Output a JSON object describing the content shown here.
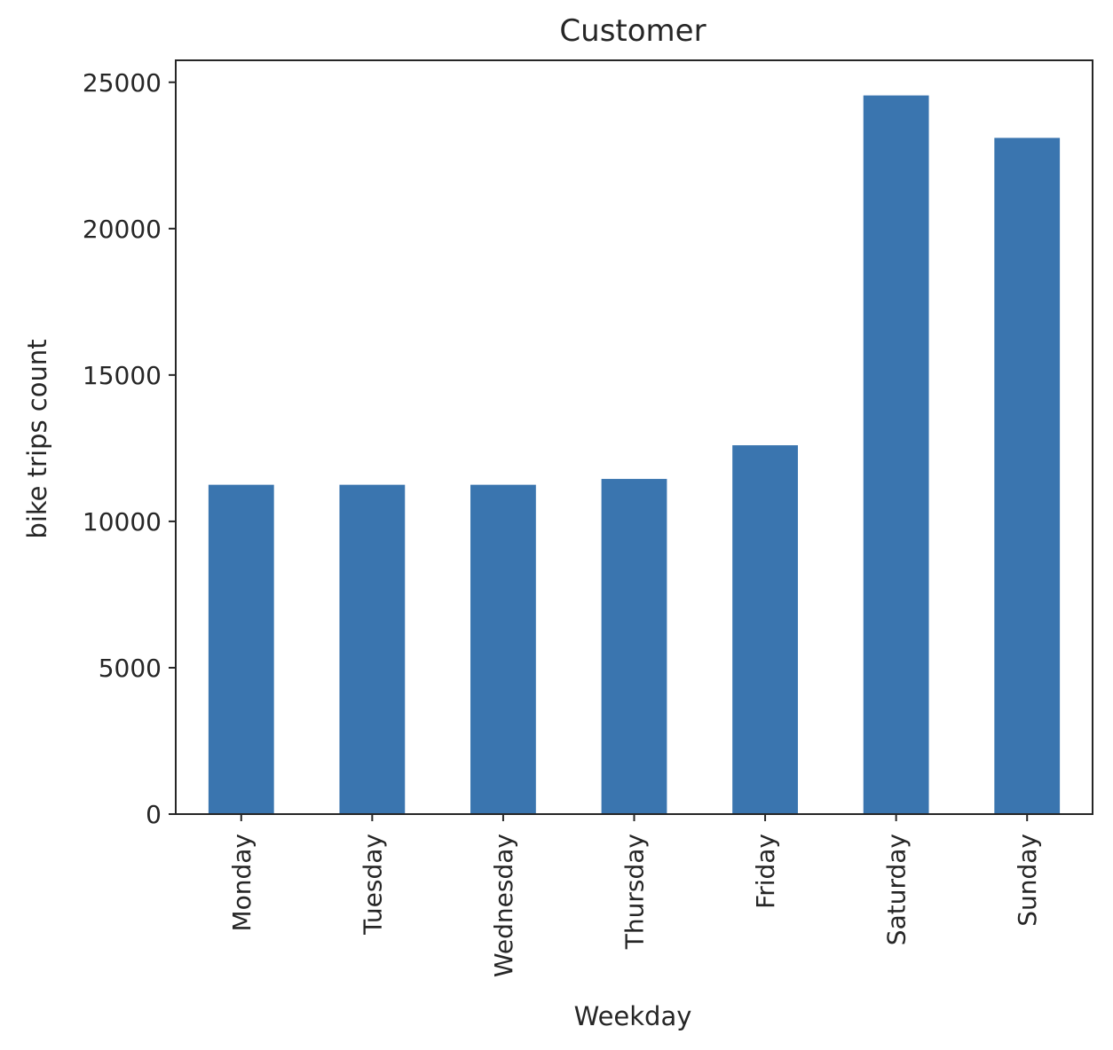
{
  "chart_data": {
    "type": "bar",
    "title": "Customer",
    "xlabel": "Weekday",
    "ylabel": "bike trips count",
    "categories": [
      "Monday",
      "Tuesday",
      "Wednesday",
      "Thursday",
      "Friday",
      "Saturday",
      "Sunday"
    ],
    "values": [
      11250,
      11250,
      11250,
      11450,
      12600,
      24550,
      23100
    ],
    "ylim": [
      0,
      25750
    ],
    "yticks": [
      0,
      5000,
      10000,
      15000,
      20000,
      25000
    ],
    "grid": false,
    "legend": "none",
    "bar_color": "#3a75af"
  }
}
